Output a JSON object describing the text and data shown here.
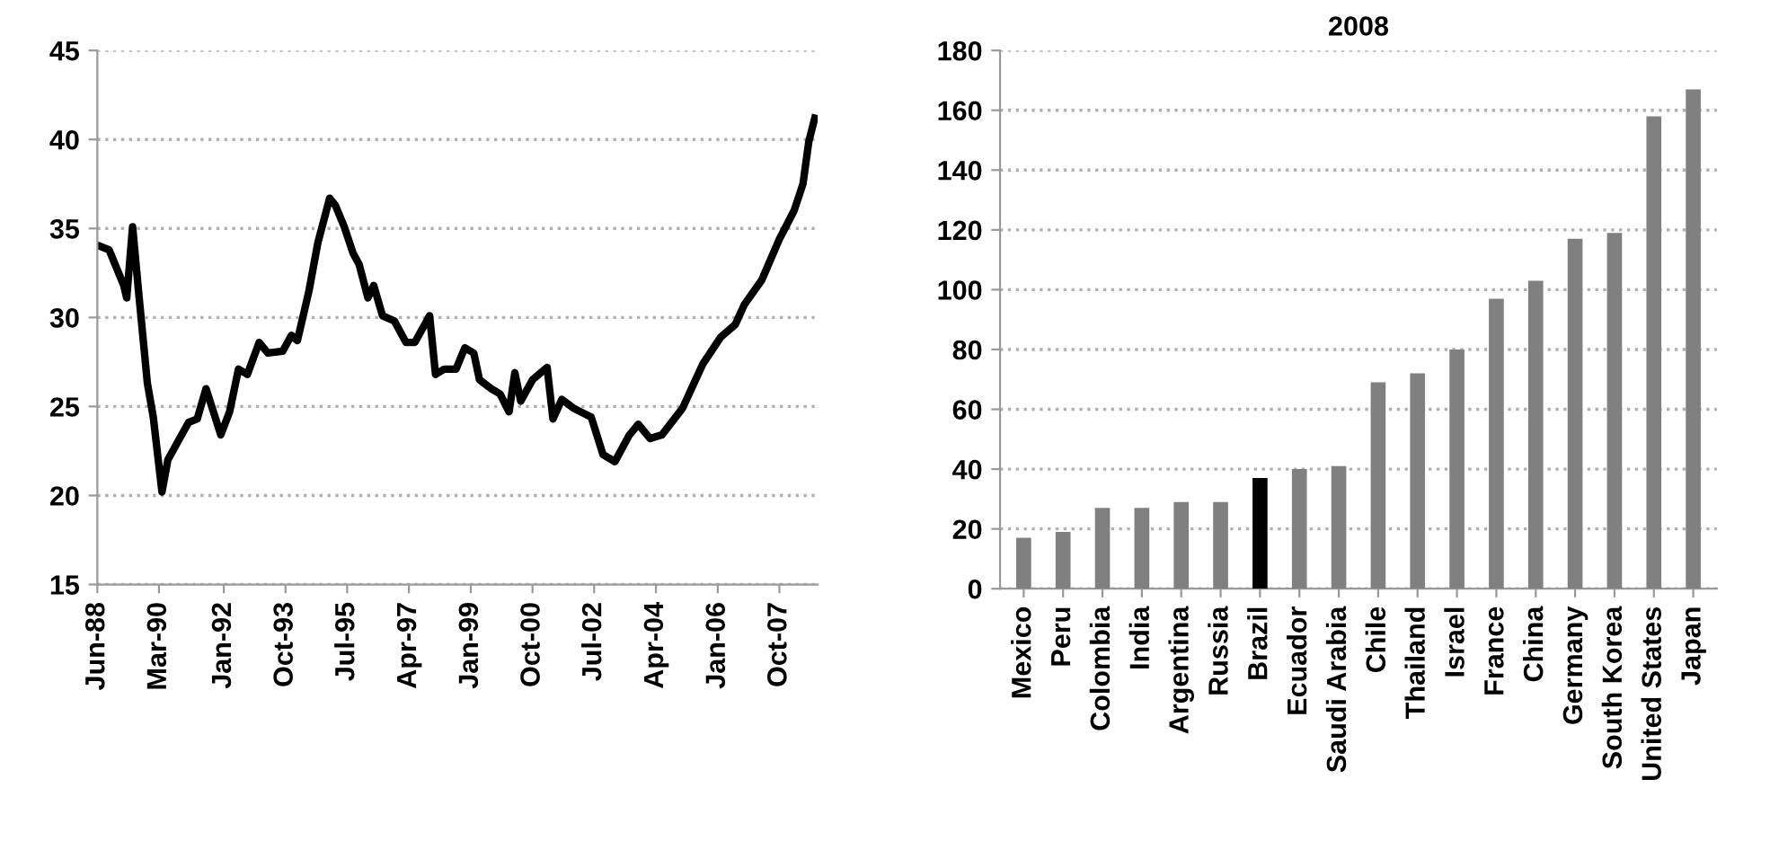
{
  "chart_data": [
    {
      "type": "line",
      "grid": "y",
      "line_style": "solid",
      "marker": "none",
      "series": [
        {
          "color": "#000000",
          "x": [
            "1988-07",
            "1988-10",
            "1989-03",
            "1989-04",
            "1989-06",
            "1989-08",
            "1989-11",
            "1990-01",
            "1990-04",
            "1990-06",
            "1990-10",
            "1991-01",
            "1991-04",
            "1991-07",
            "1991-12",
            "1992-03",
            "1992-06",
            "1992-09",
            "1993-01",
            "1993-04",
            "1993-09",
            "1993-12",
            "1994-02",
            "1994-06",
            "1994-09",
            "1995-01",
            "1995-03",
            "1995-06",
            "1995-09",
            "1995-11",
            "1996-02",
            "1996-04",
            "1996-07",
            "1996-11",
            "1997-03",
            "1997-06",
            "1997-11",
            "1998-01",
            "1998-04",
            "1998-08",
            "1998-11",
            "1999-02",
            "1999-04",
            "1999-08",
            "1999-11",
            "2000-02",
            "2000-04",
            "2000-06",
            "2000-10",
            "2001-03",
            "2001-05",
            "2001-08",
            "2001-12",
            "2002-06",
            "2002-10",
            "2003-02",
            "2003-07",
            "2003-10",
            "2004-02",
            "2004-06",
            "2005-01",
            "2005-08",
            "2006-02",
            "2006-07",
            "2006-10",
            "2007-04",
            "2007-10",
            "2008-03",
            "2008-06",
            "2008-08",
            "2008-10"
          ],
          "values": [
            34.0,
            33.8,
            31.8,
            31.1,
            35.1,
            31.5,
            26.3,
            24.4,
            20.2,
            22.0,
            23.2,
            24.1,
            24.3,
            26.0,
            23.4,
            24.7,
            27.1,
            26.8,
            28.6,
            28.0,
            28.1,
            29.0,
            28.7,
            31.5,
            34.2,
            36.7,
            36.3,
            35.1,
            33.6,
            33.0,
            31.1,
            31.8,
            30.1,
            29.8,
            28.6,
            28.6,
            30.1,
            26.8,
            27.1,
            27.1,
            28.3,
            28.0,
            26.5,
            26.0,
            25.7,
            24.7,
            26.9,
            25.3,
            26.5,
            27.2,
            24.3,
            25.4,
            24.9,
            24.4,
            22.3,
            21.9,
            23.4,
            24.0,
            23.2,
            23.4,
            24.9,
            27.4,
            28.9,
            29.6,
            30.7,
            32.1,
            34.4,
            36.0,
            37.5,
            39.9,
            41.2
          ]
        }
      ],
      "xlim": [
        "1988-06",
        "2008-11"
      ],
      "xticks": [
        {
          "value": "1988-06",
          "label": "Jun-88"
        },
        {
          "value": "1990-03",
          "label": "Mar-90"
        },
        {
          "value": "1992-01",
          "label": "Jan-92"
        },
        {
          "value": "1993-10",
          "label": "Oct-93"
        },
        {
          "value": "1995-07",
          "label": "Jul-95"
        },
        {
          "value": "1997-04",
          "label": "Apr-97"
        },
        {
          "value": "1999-01",
          "label": "Jan-99"
        },
        {
          "value": "2000-10",
          "label": "Oct-00"
        },
        {
          "value": "2002-07",
          "label": "Jul-02"
        },
        {
          "value": "2004-04",
          "label": "Apr-04"
        },
        {
          "value": "2006-01",
          "label": "Jan-06"
        },
        {
          "value": "2007-10",
          "label": "Oct-07"
        }
      ],
      "ylim": [
        15,
        45
      ],
      "yticks": [
        15,
        20,
        25,
        30,
        35,
        40,
        45
      ]
    },
    {
      "type": "bar",
      "title": "2008",
      "grid": "y",
      "categories": [
        "Mexico",
        "Peru",
        "Colombia",
        "India",
        "Argentina",
        "Russia",
        "Brazil",
        "Ecuador",
        "Saudi Arabia",
        "Chile",
        "Thailand",
        "Israel",
        "France",
        "China",
        "Germany",
        "South Korea",
        "United States",
        "Japan"
      ],
      "values": [
        17,
        19,
        27,
        27,
        29,
        29,
        37,
        40,
        41,
        69,
        72,
        80,
        97,
        103,
        117,
        119,
        158,
        167
      ],
      "colors": [
        "#808080",
        "#808080",
        "#808080",
        "#808080",
        "#808080",
        "#808080",
        "#000000",
        "#808080",
        "#808080",
        "#808080",
        "#808080",
        "#808080",
        "#808080",
        "#808080",
        "#808080",
        "#808080",
        "#808080",
        "#808080"
      ],
      "ylim": [
        0,
        180
      ],
      "yticks": [
        0,
        20,
        40,
        60,
        80,
        100,
        120,
        140,
        160,
        180
      ]
    }
  ]
}
